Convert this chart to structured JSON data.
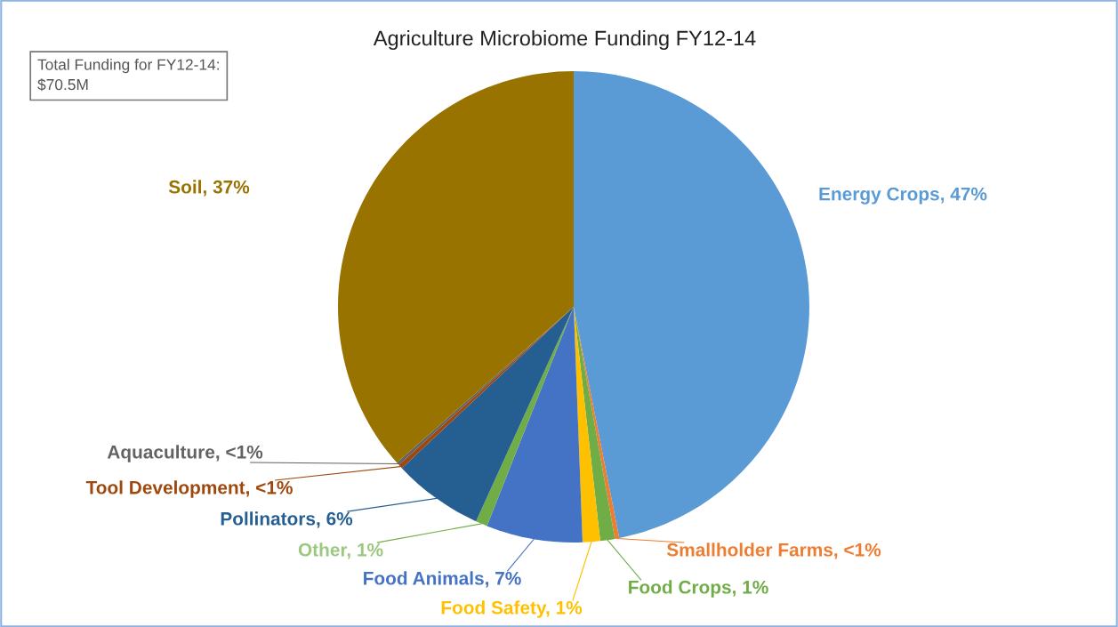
{
  "chart_data": {
    "type": "pie",
    "title": "Agriculture Microbiome Funding FY12-14",
    "categories": [
      "Energy Crops",
      "Smallholder Farms",
      "Food Crops",
      "Food Safety",
      "Food Animals",
      "Other",
      "Pollinators",
      "Tool Development",
      "Aquaculture",
      "Soil"
    ],
    "values": [
      46.9,
      0.3,
      1.0,
      1.2,
      6.6,
      0.8,
      6.2,
      0.3,
      0.2,
      36.5
    ],
    "value_labels": [
      "47%",
      "<1%",
      "1%",
      "1%",
      "7%",
      "1%",
      "6%",
      "<1%",
      "<1%",
      "37%"
    ],
    "colors": [
      "#5b9bd5",
      "#ed7d31",
      "#70ad47",
      "#ffc000",
      "#4472c4",
      "#70ad47",
      "#255e91",
      "#9e480e",
      "#636363",
      "#997300"
    ],
    "annotations": [
      "Total Funding for FY12-14:\n$70.5M"
    ],
    "legend": false
  }
}
